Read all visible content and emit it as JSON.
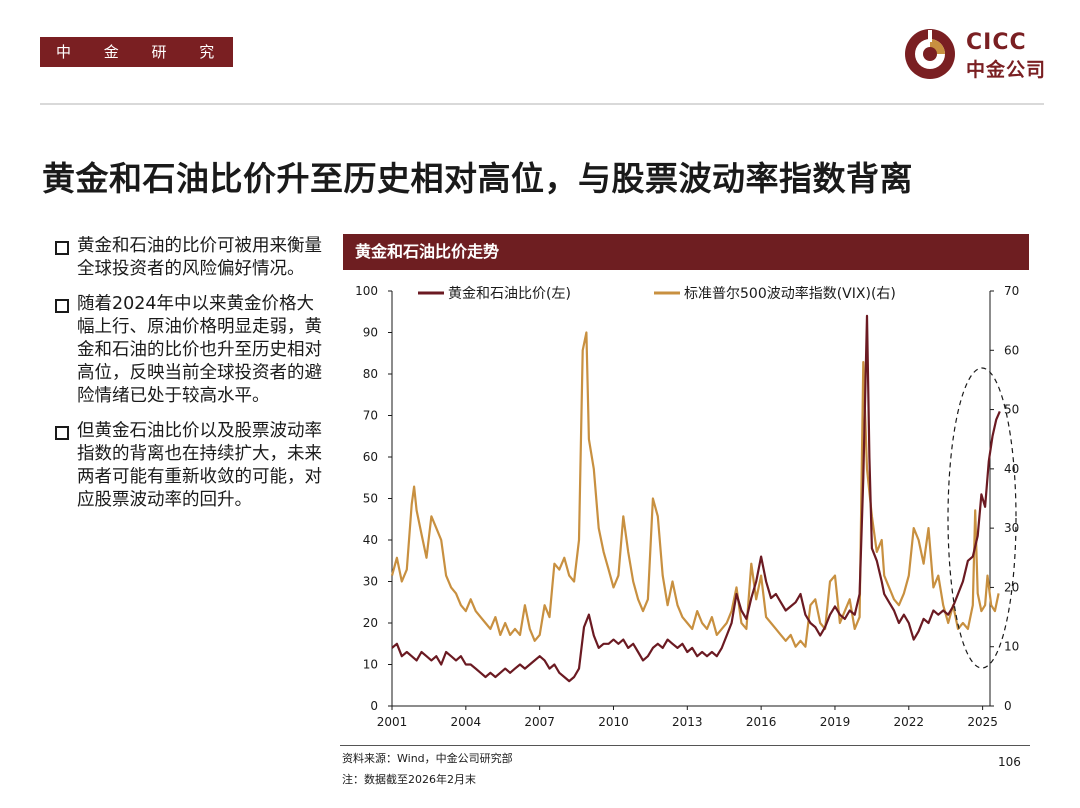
{
  "header": {
    "label": "中 金 研 究 部"
  },
  "logo": {
    "en": "CICC",
    "cn": "中金公司"
  },
  "title": "黄金和石油比价升至历史相对高位，与股票波动率指数背离",
  "bullets": [
    "黄金和石油的比价可被用来衡量全球投资者的风险偏好情况。",
    "随着2024年中以来黄金价格大幅上行、原油价格明显走弱，黄金和石油的比价也升至历史相对高位，反映当前全球投资者的避险情绪已处于较高水平。",
    "但黄金石油比价以及股票波动率指数的背离也在持续扩大，未来两者可能有重新收敛的可能，对应股票波动率的回升。"
  ],
  "chart_header": "黄金和石油比价走势",
  "source": "资料来源：Wind，中金公司研究部",
  "note": "注：数据截至2026年2月末",
  "page_number": "106",
  "colors": {
    "brand": "#7a1f22",
    "gold_oil": "#6b1a22",
    "vix": "#c89040"
  },
  "chart_data": {
    "type": "line",
    "x_ticks": [
      "2001",
      "2004",
      "2007",
      "2010",
      "2013",
      "2016",
      "2019",
      "2022",
      "2025"
    ],
    "x_range": [
      2001,
      2025.3
    ],
    "left_axis": {
      "ticks": [
        "0",
        "10",
        "20",
        "30",
        "40",
        "50",
        "60",
        "70",
        "80",
        "90",
        "100"
      ],
      "ylim": [
        0,
        100
      ]
    },
    "right_axis": {
      "ticks": [
        "0",
        "10",
        "20",
        "30",
        "40",
        "50",
        "60",
        "70"
      ],
      "ylim": [
        0,
        70
      ]
    },
    "series": [
      {
        "name": "黄金和石油比价(左)",
        "axis": "left",
        "color": "#6b1a22",
        "points": [
          [
            2001.0,
            14
          ],
          [
            2001.2,
            15
          ],
          [
            2001.4,
            12
          ],
          [
            2001.6,
            13
          ],
          [
            2001.8,
            12
          ],
          [
            2002.0,
            11
          ],
          [
            2002.2,
            13
          ],
          [
            2002.4,
            12
          ],
          [
            2002.6,
            11
          ],
          [
            2002.8,
            12
          ],
          [
            2003.0,
            10
          ],
          [
            2003.2,
            13
          ],
          [
            2003.4,
            12
          ],
          [
            2003.6,
            11
          ],
          [
            2003.8,
            12
          ],
          [
            2004.0,
            10
          ],
          [
            2004.2,
            10
          ],
          [
            2004.4,
            9
          ],
          [
            2004.6,
            8
          ],
          [
            2004.8,
            7
          ],
          [
            2005.0,
            8
          ],
          [
            2005.2,
            7
          ],
          [
            2005.4,
            8
          ],
          [
            2005.6,
            9
          ],
          [
            2005.8,
            8
          ],
          [
            2006.0,
            9
          ],
          [
            2006.2,
            10
          ],
          [
            2006.4,
            9
          ],
          [
            2006.6,
            10
          ],
          [
            2006.8,
            11
          ],
          [
            2007.0,
            12
          ],
          [
            2007.2,
            11
          ],
          [
            2007.4,
            9
          ],
          [
            2007.6,
            10
          ],
          [
            2007.8,
            8
          ],
          [
            2008.0,
            7
          ],
          [
            2008.2,
            6
          ],
          [
            2008.4,
            7
          ],
          [
            2008.6,
            9
          ],
          [
            2008.8,
            19
          ],
          [
            2009.0,
            22
          ],
          [
            2009.2,
            17
          ],
          [
            2009.4,
            14
          ],
          [
            2009.6,
            15
          ],
          [
            2009.8,
            15
          ],
          [
            2010.0,
            16
          ],
          [
            2010.2,
            15
          ],
          [
            2010.4,
            16
          ],
          [
            2010.6,
            14
          ],
          [
            2010.8,
            15
          ],
          [
            2011.0,
            13
          ],
          [
            2011.2,
            11
          ],
          [
            2011.4,
            12
          ],
          [
            2011.6,
            14
          ],
          [
            2011.8,
            15
          ],
          [
            2012.0,
            14
          ],
          [
            2012.2,
            16
          ],
          [
            2012.4,
            15
          ],
          [
            2012.6,
            14
          ],
          [
            2012.8,
            15
          ],
          [
            2013.0,
            13
          ],
          [
            2013.2,
            14
          ],
          [
            2013.4,
            12
          ],
          [
            2013.6,
            13
          ],
          [
            2013.8,
            12
          ],
          [
            2014.0,
            13
          ],
          [
            2014.2,
            12
          ],
          [
            2014.4,
            14
          ],
          [
            2014.6,
            17
          ],
          [
            2014.8,
            20
          ],
          [
            2015.0,
            27
          ],
          [
            2015.2,
            23
          ],
          [
            2015.4,
            21
          ],
          [
            2015.6,
            26
          ],
          [
            2015.8,
            30
          ],
          [
            2016.0,
            36
          ],
          [
            2016.2,
            30
          ],
          [
            2016.4,
            26
          ],
          [
            2016.6,
            27
          ],
          [
            2016.8,
            25
          ],
          [
            2017.0,
            23
          ],
          [
            2017.2,
            24
          ],
          [
            2017.4,
            25
          ],
          [
            2017.6,
            27
          ],
          [
            2017.8,
            22
          ],
          [
            2018.0,
            20
          ],
          [
            2018.2,
            19
          ],
          [
            2018.4,
            17
          ],
          [
            2018.6,
            19
          ],
          [
            2018.8,
            22
          ],
          [
            2019.0,
            24
          ],
          [
            2019.2,
            22
          ],
          [
            2019.4,
            21
          ],
          [
            2019.6,
            23
          ],
          [
            2019.8,
            22
          ],
          [
            2020.0,
            27
          ],
          [
            2020.15,
            55
          ],
          [
            2020.3,
            94
          ],
          [
            2020.4,
            60
          ],
          [
            2020.5,
            38
          ],
          [
            2020.7,
            35
          ],
          [
            2020.9,
            30
          ],
          [
            2021.0,
            27
          ],
          [
            2021.2,
            25
          ],
          [
            2021.4,
            23
          ],
          [
            2021.6,
            20
          ],
          [
            2021.8,
            22
          ],
          [
            2022.0,
            20
          ],
          [
            2022.2,
            16
          ],
          [
            2022.4,
            18
          ],
          [
            2022.6,
            21
          ],
          [
            2022.8,
            20
          ],
          [
            2023.0,
            23
          ],
          [
            2023.2,
            22
          ],
          [
            2023.4,
            23
          ],
          [
            2023.6,
            22
          ],
          [
            2023.8,
            24
          ],
          [
            2024.0,
            27
          ],
          [
            2024.2,
            30
          ],
          [
            2024.4,
            35
          ],
          [
            2024.6,
            36
          ],
          [
            2024.8,
            41
          ],
          [
            2024.95,
            51
          ],
          [
            2025.1,
            48
          ],
          [
            2025.25,
            59
          ],
          [
            2025.4,
            65
          ],
          [
            2025.55,
            69
          ],
          [
            2025.7,
            71
          ]
        ]
      },
      {
        "name": "标准普尔500波动率指数(VIX)(右)",
        "axis": "right",
        "color": "#c89040",
        "points": [
          [
            2001.0,
            22
          ],
          [
            2001.2,
            25
          ],
          [
            2001.4,
            21
          ],
          [
            2001.6,
            23
          ],
          [
            2001.8,
            34
          ],
          [
            2001.9,
            37
          ],
          [
            2002.0,
            33
          ],
          [
            2002.2,
            29
          ],
          [
            2002.4,
            25
          ],
          [
            2002.6,
            32
          ],
          [
            2002.8,
            30
          ],
          [
            2003.0,
            28
          ],
          [
            2003.2,
            22
          ],
          [
            2003.4,
            20
          ],
          [
            2003.6,
            19
          ],
          [
            2003.8,
            17
          ],
          [
            2004.0,
            16
          ],
          [
            2004.2,
            18
          ],
          [
            2004.4,
            16
          ],
          [
            2004.6,
            15
          ],
          [
            2004.8,
            14
          ],
          [
            2005.0,
            13
          ],
          [
            2005.2,
            15
          ],
          [
            2005.4,
            12
          ],
          [
            2005.6,
            14
          ],
          [
            2005.8,
            12
          ],
          [
            2006.0,
            13
          ],
          [
            2006.2,
            12
          ],
          [
            2006.4,
            17
          ],
          [
            2006.6,
            13
          ],
          [
            2006.8,
            11
          ],
          [
            2007.0,
            12
          ],
          [
            2007.2,
            17
          ],
          [
            2007.4,
            15
          ],
          [
            2007.6,
            24
          ],
          [
            2007.8,
            23
          ],
          [
            2008.0,
            25
          ],
          [
            2008.2,
            22
          ],
          [
            2008.4,
            21
          ],
          [
            2008.6,
            28
          ],
          [
            2008.75,
            60
          ],
          [
            2008.9,
            63
          ],
          [
            2009.0,
            45
          ],
          [
            2009.2,
            40
          ],
          [
            2009.4,
            30
          ],
          [
            2009.6,
            26
          ],
          [
            2009.8,
            23
          ],
          [
            2010.0,
            20
          ],
          [
            2010.2,
            22
          ],
          [
            2010.4,
            32
          ],
          [
            2010.6,
            26
          ],
          [
            2010.8,
            21
          ],
          [
            2011.0,
            18
          ],
          [
            2011.2,
            16
          ],
          [
            2011.4,
            18
          ],
          [
            2011.6,
            35
          ],
          [
            2011.8,
            32
          ],
          [
            2012.0,
            22
          ],
          [
            2012.2,
            17
          ],
          [
            2012.4,
            21
          ],
          [
            2012.6,
            17
          ],
          [
            2012.8,
            15
          ],
          [
            2013.0,
            14
          ],
          [
            2013.2,
            13
          ],
          [
            2013.4,
            16
          ],
          [
            2013.6,
            14
          ],
          [
            2013.8,
            13
          ],
          [
            2014.0,
            15
          ],
          [
            2014.2,
            12
          ],
          [
            2014.4,
            13
          ],
          [
            2014.6,
            14
          ],
          [
            2014.8,
            16
          ],
          [
            2015.0,
            20
          ],
          [
            2015.2,
            14
          ],
          [
            2015.4,
            13
          ],
          [
            2015.6,
            24
          ],
          [
            2015.8,
            18
          ],
          [
            2016.0,
            22
          ],
          [
            2016.2,
            15
          ],
          [
            2016.4,
            14
          ],
          [
            2016.6,
            13
          ],
          [
            2016.8,
            12
          ],
          [
            2017.0,
            11
          ],
          [
            2017.2,
            12
          ],
          [
            2017.4,
            10
          ],
          [
            2017.6,
            11
          ],
          [
            2017.8,
            10
          ],
          [
            2018.0,
            17
          ],
          [
            2018.2,
            18
          ],
          [
            2018.4,
            14
          ],
          [
            2018.6,
            13
          ],
          [
            2018.8,
            21
          ],
          [
            2019.0,
            22
          ],
          [
            2019.2,
            14
          ],
          [
            2019.4,
            16
          ],
          [
            2019.6,
            18
          ],
          [
            2019.8,
            13
          ],
          [
            2020.0,
            15
          ],
          [
            2020.15,
            58
          ],
          [
            2020.3,
            40
          ],
          [
            2020.5,
            32
          ],
          [
            2020.7,
            26
          ],
          [
            2020.9,
            28
          ],
          [
            2021.0,
            22
          ],
          [
            2021.2,
            20
          ],
          [
            2021.4,
            18
          ],
          [
            2021.6,
            17
          ],
          [
            2021.8,
            19
          ],
          [
            2022.0,
            22
          ],
          [
            2022.2,
            30
          ],
          [
            2022.4,
            28
          ],
          [
            2022.6,
            24
          ],
          [
            2022.8,
            30
          ],
          [
            2023.0,
            20
          ],
          [
            2023.2,
            22
          ],
          [
            2023.4,
            17
          ],
          [
            2023.6,
            14
          ],
          [
            2023.8,
            17
          ],
          [
            2024.0,
            13
          ],
          [
            2024.2,
            14
          ],
          [
            2024.4,
            13
          ],
          [
            2024.6,
            17
          ],
          [
            2024.7,
            33
          ],
          [
            2024.8,
            19
          ],
          [
            2024.95,
            16
          ],
          [
            2025.1,
            17
          ],
          [
            2025.2,
            22
          ],
          [
            2025.35,
            17
          ],
          [
            2025.5,
            16
          ],
          [
            2025.65,
            19
          ]
        ]
      }
    ],
    "annotation": "dashed ellipse highlighting divergence since 2024"
  }
}
